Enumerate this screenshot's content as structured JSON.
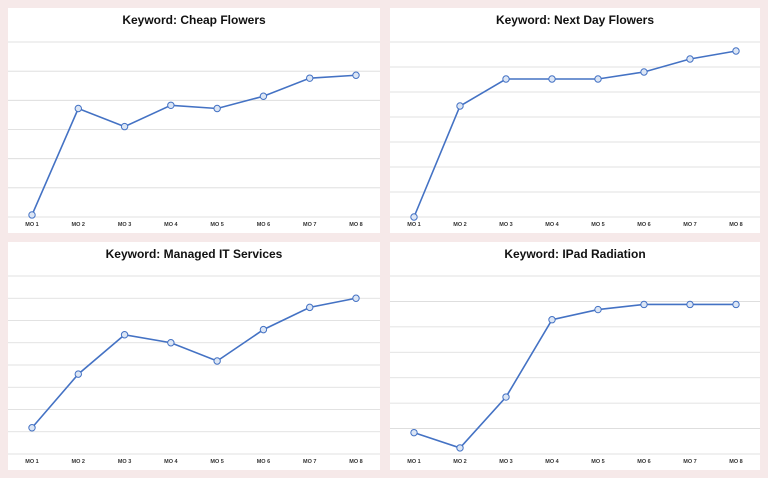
{
  "chart_data": [
    {
      "type": "line",
      "title": "Keyword: Cheap Flowers",
      "categories": [
        "MO 1",
        "MO 2",
        "MO 3",
        "MO 4",
        "MO 5",
        "MO 6",
        "MO 7",
        "MO 8"
      ],
      "series": [
        {
          "color": "#4472c4",
          "values": [
            0.07,
            3.72,
            3.1,
            3.83,
            3.72,
            4.14,
            4.76,
            4.86
          ]
        }
      ],
      "ylim": [
        0,
        6
      ],
      "yticks": [
        0,
        1,
        2,
        3,
        4,
        5,
        6
      ],
      "grid": true
    },
    {
      "type": "line",
      "title": "Keyword: Next Day Flowers",
      "categories": [
        "MO 1",
        "MO 2",
        "MO 3",
        "MO 4",
        "MO 5",
        "MO 6",
        "MO 7",
        "MO 8"
      ],
      "series": [
        {
          "color": "#4472c4",
          "values": [
            0,
            4.44,
            5.52,
            5.52,
            5.52,
            5.8,
            6.32,
            6.64
          ]
        }
      ],
      "ylim": [
        0,
        7
      ],
      "yticks": [
        0,
        1,
        2,
        3,
        4,
        5,
        6,
        7
      ],
      "grid": true
    },
    {
      "type": "line",
      "title": "Keyword: Managed IT Services",
      "categories": [
        "MO 1",
        "MO 2",
        "MO 3",
        "MO 4",
        "MO 5",
        "MO 6",
        "MO 7",
        "MO 8"
      ],
      "series": [
        {
          "color": "#4472c4",
          "values": [
            1.18,
            3.59,
            5.36,
            5,
            4.18,
            5.59,
            6.59,
            7
          ]
        }
      ],
      "ylim": [
        0,
        8
      ],
      "yticks": [
        0,
        1,
        2,
        3,
        4,
        5,
        6,
        7,
        8
      ],
      "grid": true
    },
    {
      "type": "line",
      "title": "Keyword: IPad Radiation",
      "categories": [
        "MO 1",
        "MO 2",
        "MO 3",
        "MO 4",
        "MO 5",
        "MO 6",
        "MO 7",
        "MO 8"
      ],
      "series": [
        {
          "color": "#4472c4",
          "values": [
            0.84,
            0.24,
            2.24,
            5.28,
            5.68,
            5.88,
            5.88,
            5.88
          ]
        }
      ],
      "ylim": [
        0,
        7
      ],
      "yticks": [
        0,
        1,
        2,
        3,
        4,
        5,
        6,
        7
      ],
      "grid": true
    }
  ]
}
